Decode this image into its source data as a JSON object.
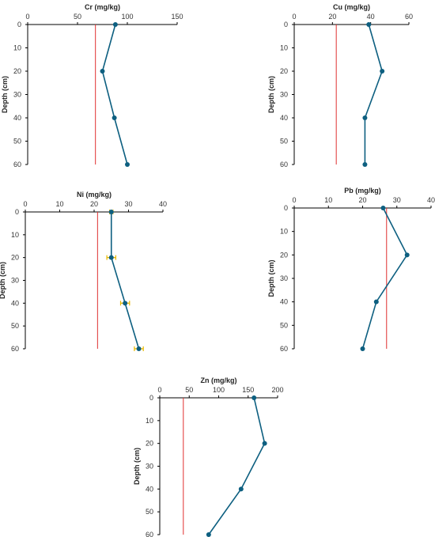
{
  "chart_data": [
    {
      "type": "line",
      "title": "Cr (mg/kg)",
      "ylabel": "Depth (cm)",
      "xlim": [
        0,
        150
      ],
      "xticks": [
        0,
        50,
        100,
        150
      ],
      "ylim": [
        0,
        60
      ],
      "yticks": [
        0,
        10,
        20,
        30,
        40,
        50,
        60
      ],
      "y_inverted": true,
      "series": [
        {
          "depth": [
            0,
            20,
            40,
            60
          ],
          "values": [
            88,
            75,
            87,
            100
          ]
        }
      ],
      "reference_line": 68,
      "colors": {
        "line": "#0d5f80",
        "marker": "#0d5f80",
        "reference": "#e03030",
        "axis": "#000000"
      }
    },
    {
      "type": "line",
      "title": "Cu (mg/kg)",
      "ylabel": "Depth (cm)",
      "xlim": [
        0,
        60
      ],
      "xticks": [
        0,
        20,
        40,
        60
      ],
      "ylim": [
        0,
        60
      ],
      "yticks": [
        0,
        10,
        20,
        30,
        40,
        50,
        60
      ],
      "y_inverted": true,
      "series": [
        {
          "depth": [
            0,
            20,
            40,
            60
          ],
          "values": [
            39,
            46,
            37,
            37
          ]
        }
      ],
      "reference_line": 22,
      "colors": {
        "line": "#0d5f80",
        "marker": "#0d5f80",
        "reference": "#e03030",
        "axis": "#000000"
      }
    },
    {
      "type": "line",
      "title": "Ni (mg/kg)",
      "ylabel": "Depth (cm)",
      "xlim": [
        0,
        40
      ],
      "xticks": [
        0,
        10,
        20,
        30,
        40
      ],
      "ylim": [
        0,
        60
      ],
      "yticks": [
        0,
        10,
        20,
        30,
        40,
        50,
        60
      ],
      "y_inverted": true,
      "series": [
        {
          "depth": [
            0,
            20,
            40,
            60
          ],
          "values": [
            25,
            25,
            29,
            33
          ],
          "error": [
            0.5,
            1.3,
            1.3,
            1.3
          ]
        }
      ],
      "reference_line": 21,
      "colors": {
        "line": "#0d5f80",
        "marker": "#0d5f80",
        "error": "#e8b800",
        "reference": "#e03030",
        "axis": "#000000"
      }
    },
    {
      "type": "line",
      "title": "Pb (mg/kg)",
      "ylabel": "Depth (cm)",
      "xlim": [
        0,
        40
      ],
      "xticks": [
        0,
        10,
        20,
        30,
        40
      ],
      "ylim": [
        0,
        60
      ],
      "yticks": [
        0,
        10,
        20,
        30,
        40,
        50,
        60
      ],
      "y_inverted": true,
      "series": [
        {
          "depth": [
            0,
            20,
            40,
            60
          ],
          "values": [
            26,
            33,
            24,
            20
          ]
        }
      ],
      "reference_line": 27,
      "colors": {
        "line": "#0d5f80",
        "marker": "#0d5f80",
        "reference": "#e03030",
        "axis": "#000000"
      }
    },
    {
      "type": "line",
      "title": "Zn (mg/kg)",
      "ylabel": "Depth (cm)",
      "xlim": [
        0,
        200
      ],
      "xticks": [
        0,
        50,
        100,
        150,
        200
      ],
      "ylim": [
        0,
        60
      ],
      "yticks": [
        0,
        10,
        20,
        30,
        40,
        50,
        60
      ],
      "y_inverted": true,
      "series": [
        {
          "depth": [
            0,
            20,
            40,
            60
          ],
          "values": [
            160,
            178,
            138,
            83
          ]
        }
      ],
      "reference_line": 40,
      "colors": {
        "line": "#0d5f80",
        "marker": "#0d5f80",
        "reference": "#e03030",
        "axis": "#000000"
      }
    }
  ]
}
